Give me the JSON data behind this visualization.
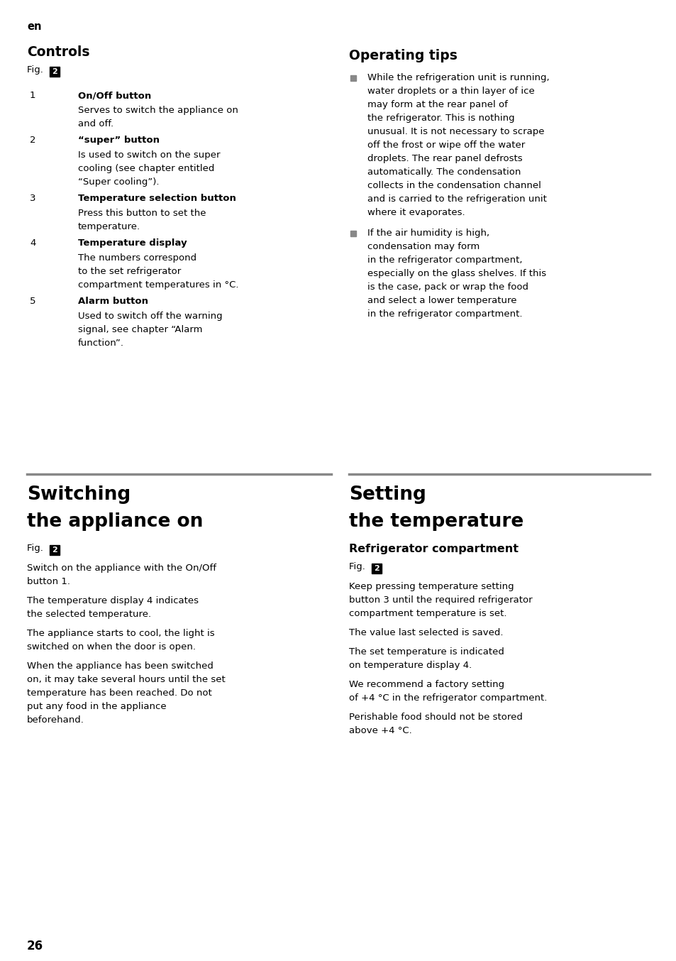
{
  "bg_color": "#ffffff",
  "page_number": "26",
  "lang_label": "en",
  "sections": {
    "controls": {
      "title": "Controls",
      "fig_num": "2",
      "items": [
        {
          "num": "1",
          "heading": "On/Off button",
          "body": [
            "Serves to switch the appliance on",
            "and off."
          ]
        },
        {
          "num": "2",
          "heading": "“super” button",
          "body": [
            "Is used to switch on the super",
            "cooling (see chapter entitled",
            "“Super cooling”)."
          ]
        },
        {
          "num": "3",
          "heading": "Temperature selection button",
          "body": [
            "Press this button to set the",
            "temperature."
          ]
        },
        {
          "num": "4",
          "heading": "Temperature display",
          "body": [
            "The numbers correspond",
            "to the set refrigerator",
            "compartment temperatures in °C."
          ]
        },
        {
          "num": "5",
          "heading": "Alarm button",
          "body": [
            "Used to switch off the warning",
            "signal, see chapter “Alarm",
            "function”."
          ]
        }
      ]
    },
    "operating_tips": {
      "title": "Operating tips",
      "bullets": [
        [
          "While the refrigeration unit is running,",
          "water droplets or a thin layer of ice",
          "may form at the rear panel of",
          "the refrigerator. This is nothing",
          "unusual. It is not necessary to scrape",
          "off the frost or wipe off the water",
          "droplets. The rear panel defrosts",
          "automatically. The condensation",
          "collects in the condensation channel",
          "and is carried to the refrigeration unit",
          "where it evaporates."
        ],
        [
          "If the air humidity is high,",
          "condensation may form",
          "in the refrigerator compartment,",
          "especially on the glass shelves. If this",
          "is the case, pack or wrap the food",
          "and select a lower temperature",
          "in the refrigerator compartment."
        ]
      ]
    },
    "switching": {
      "title1": "Switching",
      "title2": "the appliance on",
      "fig_num": "2",
      "paragraphs": [
        [
          "Switch on the appliance with the On/Off",
          "button 1."
        ],
        [
          "The temperature display 4 indicates",
          "the selected temperature."
        ],
        [
          "The appliance starts to cool, the light is",
          "switched on when the door is open."
        ],
        [
          "When the appliance has been switched",
          "on, it may take several hours until the set",
          "temperature has been reached. Do not",
          "put any food in the appliance",
          "beforehand."
        ]
      ]
    },
    "setting": {
      "title1": "Setting",
      "title2": "the temperature",
      "sub_title": "Refrigerator compartment",
      "fig_num": "2",
      "paragraphs": [
        [
          "Keep pressing temperature setting",
          "button 3 until the required refrigerator",
          "compartment temperature is set."
        ],
        [
          "The value last selected is saved."
        ],
        [
          "The set temperature is indicated",
          "on temperature display 4."
        ],
        [
          "We recommend a factory setting",
          "of +4 °C in the refrigerator compartment."
        ],
        [
          "Perishable food should not be stored",
          "above +4 °C."
        ]
      ]
    }
  }
}
